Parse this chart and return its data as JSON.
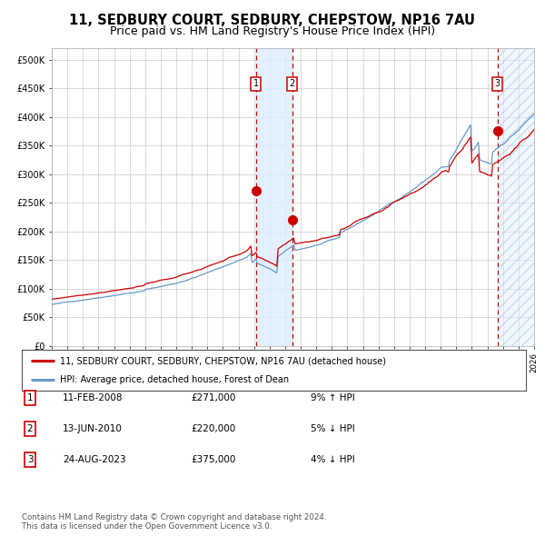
{
  "title": "11, SEDBURY COURT, SEDBURY, CHEPSTOW, NP16 7AU",
  "subtitle": "Price paid vs. HM Land Registry's House Price Index (HPI)",
  "title_fontsize": 10.5,
  "subtitle_fontsize": 9.0,
  "xlim": [
    1995.0,
    2026.0
  ],
  "ylim": [
    0,
    520000
  ],
  "yticks": [
    0,
    50000,
    100000,
    150000,
    200000,
    250000,
    300000,
    350000,
    400000,
    450000,
    500000
  ],
  "ytick_labels": [
    "£0",
    "£50K",
    "£100K",
    "£150K",
    "£200K",
    "£250K",
    "£300K",
    "£350K",
    "£400K",
    "£450K",
    "£500K"
  ],
  "red_line_color": "#cc0000",
  "blue_line_color": "#6699cc",
  "dot_color": "#cc0000",
  "vline_color": "#cc0000",
  "shade_color": "#ddeeff",
  "transaction1_x": 2008.11,
  "transaction1_y": 271000,
  "transaction2_x": 2010.45,
  "transaction2_y": 220000,
  "transaction3_x": 2023.65,
  "transaction3_y": 375000,
  "shade_x1": 2008.11,
  "shade_x2": 2010.45,
  "hatch_x": 2023.65,
  "legend_line1": "11, SEDBURY COURT, SEDBURY, CHEPSTOW, NP16 7AU (detached house)",
  "legend_line2": "HPI: Average price, detached house, Forest of Dean",
  "table_entries": [
    {
      "num": "1",
      "date": "11-FEB-2008",
      "price": "£271,000",
      "hpi": "9% ↑ HPI"
    },
    {
      "num": "2",
      "date": "13-JUN-2010",
      "price": "£220,000",
      "hpi": "5% ↓ HPI"
    },
    {
      "num": "3",
      "date": "24-AUG-2023",
      "price": "£375,000",
      "hpi": "4% ↓ HPI"
    }
  ],
  "footnote": "Contains HM Land Registry data © Crown copyright and database right 2024.\nThis data is licensed under the Open Government Licence v3.0.",
  "bg_color": "#ffffff",
  "grid_color": "#cccccc"
}
